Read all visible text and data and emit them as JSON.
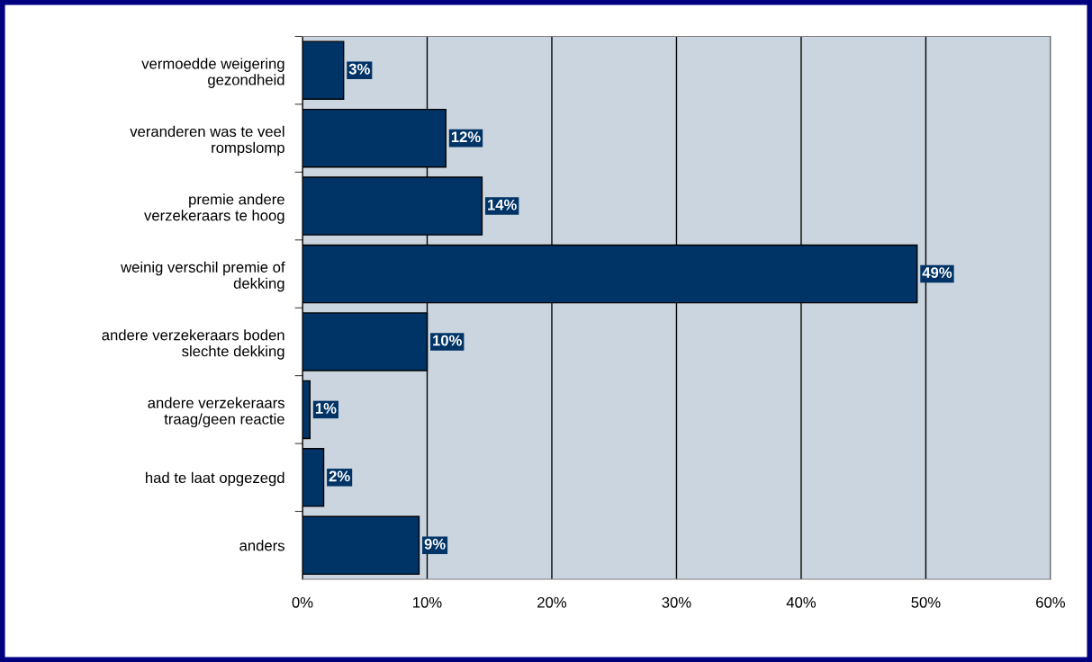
{
  "chart_data": {
    "type": "bar",
    "orientation": "horizontal",
    "categories": [
      "vermoedde weigering\ngezondheid",
      "veranderen was te veel\nrompslomp",
      "premie andere\nverzekeraars te hoog",
      "weinig verschil premie of\ndekking",
      "andere verzekeraars boden\nslechte dekking",
      "andere verzekeraars\ntraag/geen reactie",
      "had te laat opgezegd",
      "anders"
    ],
    "values": [
      3.3,
      11.5,
      14.4,
      49.3,
      10.0,
      0.6,
      1.7,
      9.35
    ],
    "value_labels": [
      "3%",
      "12%",
      "14%",
      "49%",
      "10%",
      "1%",
      "2%",
      "9%"
    ],
    "color": "#003366",
    "xlim": [
      0,
      60
    ],
    "xticks": [
      {
        "value": 0,
        "label": "0%"
      },
      {
        "value": 10,
        "label": "10%"
      },
      {
        "value": 20,
        "label": "20%"
      },
      {
        "value": 30,
        "label": "30%"
      },
      {
        "value": 40,
        "label": "40%"
      },
      {
        "value": 50,
        "label": "50%"
      },
      {
        "value": 60,
        "label": "60%"
      }
    ],
    "grid": "x",
    "legend": false
  }
}
